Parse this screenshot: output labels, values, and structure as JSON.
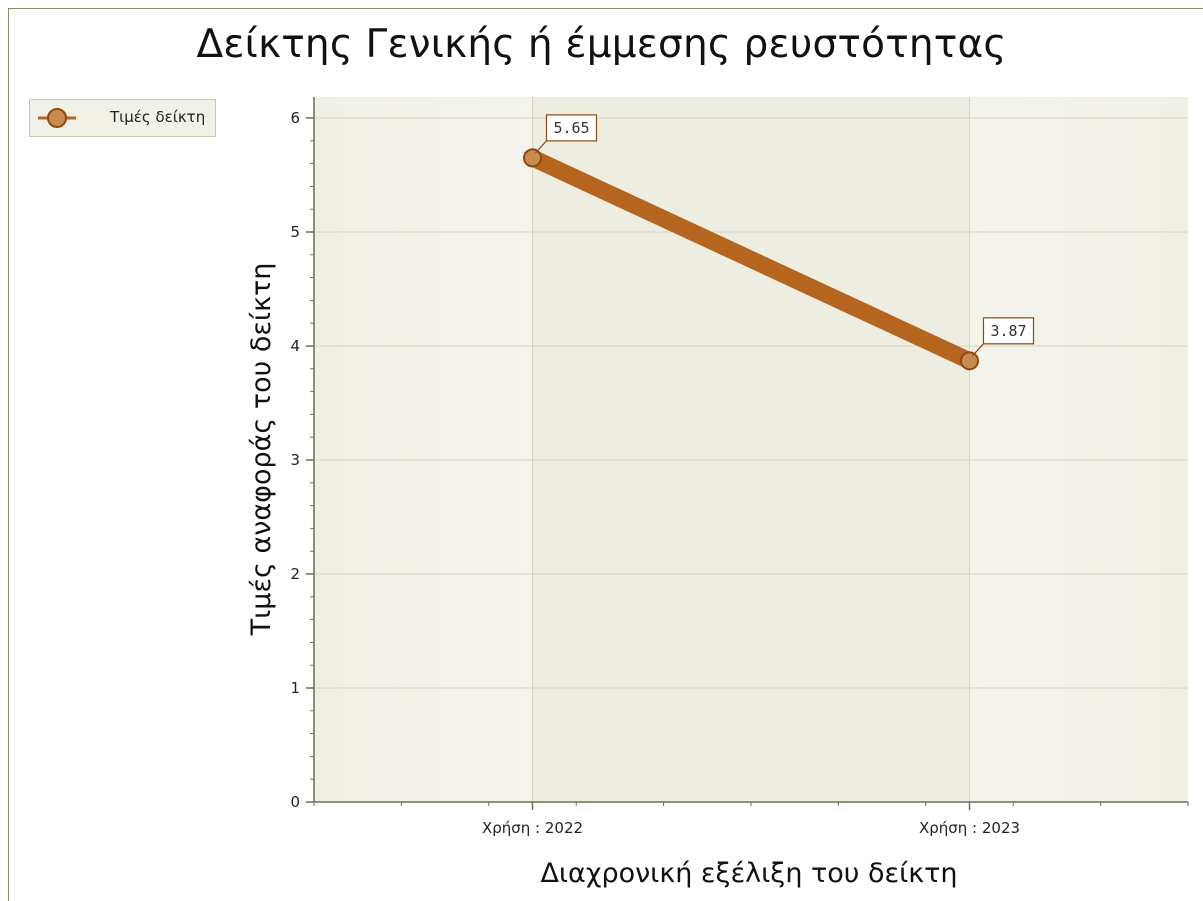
{
  "chart_data": {
    "type": "line",
    "title": "Δείκτης Γενικής ή έμμεσης ρευστότητας",
    "xlabel": "Διαχρονική εξέλιξη του δείκτη",
    "ylabel": "Τιμές αναφοράς του δείκτη",
    "categories": [
      "Χρήση : 2022",
      "Χρήση : 2023"
    ],
    "series": [
      {
        "name": "Τιμές δείκτη",
        "values": [
          5.65,
          3.87
        ],
        "labels": [
          "5.65",
          "3.87"
        ]
      }
    ],
    "ylim": [
      0,
      6
    ],
    "yticks": [
      "0",
      "1",
      "2",
      "3",
      "4",
      "5",
      "6"
    ],
    "grid": true,
    "legend_position": "top-left",
    "colors": {
      "series": "#b5651d",
      "marker_fill": "#c88a4f",
      "marker_stroke": "#8b4a12",
      "plot_background": "#f4f3ec",
      "band": "#ecebdf",
      "grid": "#d6d6bc",
      "axis": "#6e6e4e"
    }
  }
}
